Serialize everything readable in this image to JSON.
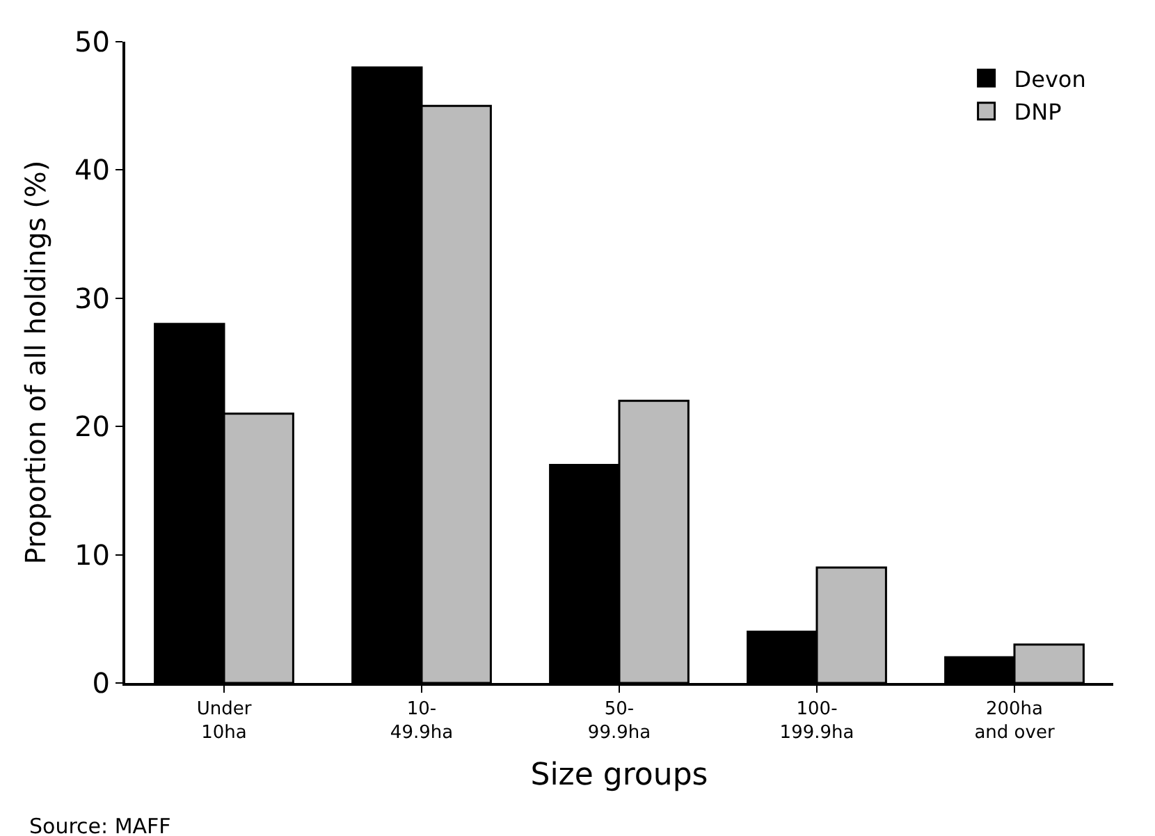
{
  "chart_data": {
    "type": "bar",
    "xlabel": "Size groups",
    "ylabel": "Proportion of all holdings (%)",
    "categories": [
      "Under\n10ha",
      "10-\n49.9ha",
      "50-\n99.9ha",
      "100-\n199.9ha",
      "200ha\nand over"
    ],
    "series": [
      {
        "name": "Devon",
        "color": "#000000",
        "values": [
          28,
          48,
          17,
          4,
          2
        ]
      },
      {
        "name": "DNP",
        "color": "#bbbbbb",
        "values": [
          21,
          45,
          22,
          9,
          3
        ]
      }
    ],
    "ylim": [
      0,
      50
    ],
    "yticks": [
      0,
      10,
      20,
      30,
      40,
      50
    ],
    "legend": "top right",
    "annotations": [
      "Source: MAFF"
    ]
  }
}
